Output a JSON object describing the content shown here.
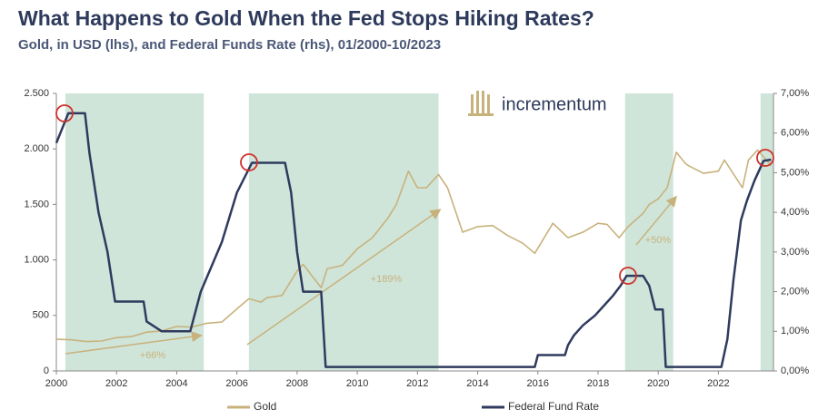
{
  "chart_data": {
    "type": "line",
    "title": "What Happens to Gold When the Fed Stops Hiking Rates?",
    "subtitle": "Gold, in USD (lhs), and Federal Funds Rate (rhs), 01/2000-10/2023",
    "logo": "incrementum",
    "xlim": [
      2000,
      2023.83
    ],
    "xticks": [
      2000,
      2002,
      2004,
      2006,
      2008,
      2010,
      2012,
      2014,
      2016,
      2018,
      2020,
      2022
    ],
    "ylim": [
      0,
      2500
    ],
    "yticks": [
      0,
      500,
      {
        "value": 1000,
        "label": "1.000"
      },
      {
        "value": 1500,
        "label": "1.500"
      },
      {
        "value": 2000,
        "label": "2.000"
      },
      {
        "value": 2500,
        "label": "2.500"
      }
    ],
    "y2lim": [
      0,
      7
    ],
    "y2ticks": [
      {
        "value": 0,
        "label": "0,00%"
      },
      {
        "value": 1,
        "label": "1,00%"
      },
      {
        "value": 2,
        "label": "2,00%"
      },
      {
        "value": 3,
        "label": "3,00%"
      },
      {
        "value": 4,
        "label": "4,00%"
      },
      {
        "value": 5,
        "label": "5,00%"
      },
      {
        "value": 6,
        "label": "6,00%"
      },
      {
        "value": 7,
        "label": "7,00%"
      }
    ],
    "highlight_ranges": [
      [
        2000.3,
        2004.9
      ],
      [
        2006.4,
        2012.7
      ],
      [
        2018.9,
        2020.5
      ],
      [
        2023.4,
        2023.83
      ]
    ],
    "highlight_color": "#cfe5da",
    "annotations": [
      "+66%",
      "+189%",
      "+50%"
    ],
    "series": [
      {
        "name": "Gold",
        "color": "#c8b27c",
        "axis": "y",
        "x": [
          2000,
          2000.5,
          2001,
          2001.5,
          2002,
          2002.5,
          2003,
          2003.5,
          2004,
          2004.5,
          2005,
          2005.5,
          2006,
          2006.4,
          2006.8,
          2007,
          2007.5,
          2008,
          2008.2,
          2008.8,
          2009,
          2009.5,
          2010,
          2010.5,
          2011,
          2011.3,
          2011.7,
          2012,
          2012.3,
          2012.7,
          2013,
          2013.5,
          2014,
          2014.5,
          2015,
          2015.5,
          2015.9,
          2016.5,
          2017,
          2017.5,
          2018,
          2018.3,
          2018.7,
          2019,
          2019.5,
          2019.7,
          2020,
          2020.3,
          2020.6,
          2020.9,
          2021,
          2021.5,
          2022,
          2022.2,
          2022.8,
          2023,
          2023.3,
          2023.75
        ],
        "values": [
          285,
          280,
          265,
          270,
          300,
          310,
          350,
          360,
          400,
          395,
          430,
          440,
          560,
          650,
          620,
          660,
          680,
          900,
          960,
          750,
          920,
          950,
          1100,
          1200,
          1370,
          1500,
          1800,
          1650,
          1650,
          1770,
          1650,
          1250,
          1300,
          1310,
          1220,
          1150,
          1060,
          1330,
          1200,
          1250,
          1330,
          1320,
          1200,
          1300,
          1420,
          1500,
          1550,
          1650,
          1970,
          1870,
          1850,
          1780,
          1800,
          1900,
          1650,
          1900,
          1990,
          1850
        ]
      },
      {
        "name": "Federal Fund Rate",
        "color": "#2f3a5e",
        "axis": "y2",
        "x": [
          2000,
          2000.4,
          2000.95,
          2001.1,
          2001.4,
          2001.7,
          2001.95,
          2002.9,
          2003.0,
          2003.5,
          2004.45,
          2004.8,
          2005.5,
          2006.0,
          2006.5,
          2007.6,
          2007.8,
          2008.0,
          2008.2,
          2008.8,
          2008.95,
          2015.9,
          2016.0,
          2016.9,
          2017.0,
          2017.2,
          2017.5,
          2017.9,
          2018.2,
          2018.5,
          2018.75,
          2018.95,
          2019.5,
          2019.7,
          2019.9,
          2020.15,
          2020.25,
          2022.1,
          2022.3,
          2022.5,
          2022.75,
          2022.95,
          2023.2,
          2023.5,
          2023.75
        ],
        "values": [
          5.75,
          6.5,
          6.5,
          5.5,
          4.0,
          3.0,
          1.75,
          1.75,
          1.25,
          1.0,
          1.0,
          2.0,
          3.25,
          4.5,
          5.25,
          5.25,
          4.5,
          3.0,
          2.0,
          2.0,
          0.1,
          0.1,
          0.4,
          0.4,
          0.65,
          0.9,
          1.15,
          1.4,
          1.65,
          1.9,
          2.15,
          2.4,
          2.4,
          2.15,
          1.55,
          1.55,
          0.1,
          0.1,
          0.8,
          2.3,
          3.8,
          4.3,
          4.8,
          5.3,
          5.33
        ]
      }
    ]
  }
}
